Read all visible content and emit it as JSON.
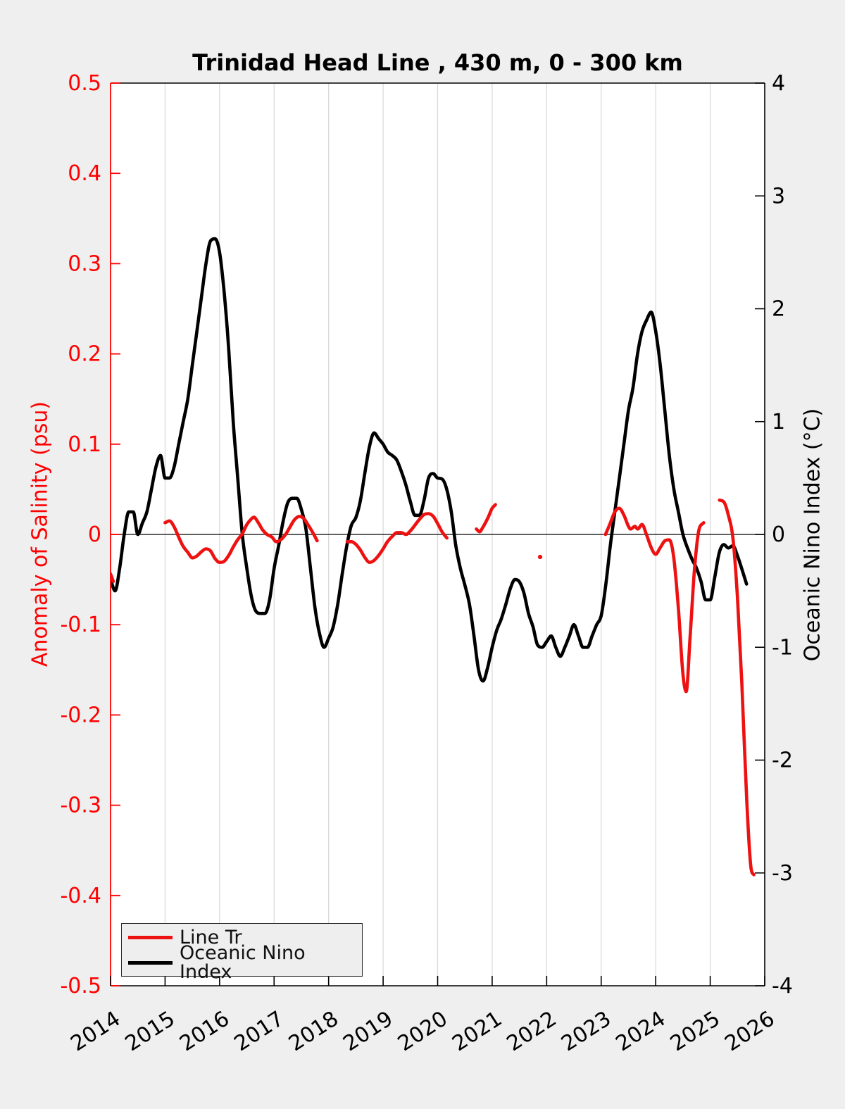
{
  "chart_data": {
    "type": "line",
    "title": "Trinidad Head Line , 430 m, 0 - 300 km",
    "x_axis": {
      "tick_labels": [
        2014,
        2015,
        2016,
        2017,
        2018,
        2019,
        2020,
        2021,
        2022,
        2023,
        2024,
        2025,
        2026
      ],
      "min": 2014,
      "max": 2026,
      "grid": "vertical"
    },
    "left_axis": {
      "label": "Anomaly of Salinity (psu)",
      "color": "#ff0000",
      "min": -0.5,
      "max": 0.5,
      "tick_step": 0.1
    },
    "right_axis": {
      "label": "Oceanic Nino Index (°C)",
      "color": "#000000",
      "min": -4,
      "max": 4,
      "tick_step": 1
    },
    "zero_line": true,
    "legend": [
      {
        "label": "Line Tr",
        "color": "#ee1111"
      },
      {
        "label": "Oceanic Nino Index",
        "color": "#000000"
      }
    ],
    "series": [
      {
        "name": "Oceanic Nino Index",
        "axis": "right",
        "color": "#000000",
        "x_start": 2013.9167,
        "x_step": 0.0833333,
        "values": [
          -0.3,
          -0.4,
          -0.5,
          -0.3,
          0.0,
          0.2,
          0.2,
          0.0,
          0.1,
          0.2,
          0.4,
          0.6,
          0.7,
          0.5,
          0.5,
          0.6,
          0.8,
          1.0,
          1.2,
          1.5,
          1.8,
          2.1,
          2.4,
          2.6,
          2.62,
          2.5,
          2.15,
          1.65,
          1.0,
          0.5,
          0.0,
          -0.3,
          -0.55,
          -0.68,
          -0.7,
          -0.7,
          -0.58,
          -0.3,
          -0.1,
          0.12,
          0.28,
          0.32,
          0.32,
          0.22,
          0.05,
          -0.3,
          -0.65,
          -0.88,
          -1.0,
          -0.92,
          -0.82,
          -0.62,
          -0.35,
          -0.1,
          0.08,
          0.15,
          0.3,
          0.55,
          0.78,
          0.9,
          0.85,
          0.8,
          0.73,
          0.7,
          0.66,
          0.56,
          0.44,
          0.29,
          0.17,
          0.17,
          0.3,
          0.5,
          0.54,
          0.5,
          0.49,
          0.4,
          0.2,
          -0.1,
          -0.3,
          -0.45,
          -0.62,
          -0.9,
          -1.2,
          -1.3,
          -1.18,
          -1.0,
          -0.85,
          -0.75,
          -0.62,
          -0.48,
          -0.4,
          -0.42,
          -0.52,
          -0.7,
          -0.82,
          -0.98,
          -1.0,
          -0.95,
          -0.9,
          -1.0,
          -1.08,
          -1.0,
          -0.9,
          -0.8,
          -0.9,
          -1.0,
          -1.0,
          -0.9,
          -0.8,
          -0.72,
          -0.45,
          -0.1,
          0.2,
          0.5,
          0.8,
          1.1,
          1.3,
          1.6,
          1.8,
          1.9,
          1.97,
          1.8,
          1.5,
          1.1,
          0.7,
          0.4,
          0.2,
          0.0,
          -0.12,
          -0.22,
          -0.3,
          -0.42,
          -0.58,
          -0.58,
          -0.38,
          -0.16,
          -0.09,
          -0.12,
          -0.1,
          -0.19,
          -0.31,
          -0.44
        ]
      },
      {
        "name": "Line Tr",
        "axis": "left",
        "color": "#ee1111",
        "segments": [
          [
            [
              2013.95,
              -0.04
            ],
            [
              2014.0,
              -0.044
            ],
            [
              2014.05,
              -0.052
            ]
          ],
          [
            [
              2015.0,
              0.013
            ],
            [
              2015.08,
              0.015
            ],
            [
              2015.17,
              0.008
            ],
            [
              2015.25,
              -0.003
            ],
            [
              2015.33,
              -0.013
            ],
            [
              2015.42,
              -0.02
            ],
            [
              2015.5,
              -0.026
            ],
            [
              2015.58,
              -0.024
            ],
            [
              2015.67,
              -0.019
            ],
            [
              2015.75,
              -0.016
            ],
            [
              2015.83,
              -0.018
            ],
            [
              2015.92,
              -0.027
            ],
            [
              2016.0,
              -0.031
            ],
            [
              2016.08,
              -0.03
            ],
            [
              2016.17,
              -0.023
            ],
            [
              2016.25,
              -0.014
            ],
            [
              2016.33,
              -0.006
            ],
            [
              2016.42,
              0.001
            ],
            [
              2016.5,
              0.011
            ],
            [
              2016.58,
              0.017
            ],
            [
              2016.63,
              0.019
            ],
            [
              2016.71,
              0.013
            ],
            [
              2016.79,
              0.005
            ],
            [
              2016.87,
              0.0
            ],
            [
              2016.96,
              -0.003
            ],
            [
              2017.04,
              -0.008
            ],
            [
              2017.12,
              -0.006
            ],
            [
              2017.21,
              0.0
            ],
            [
              2017.29,
              0.008
            ],
            [
              2017.37,
              0.016
            ],
            [
              2017.46,
              0.02
            ],
            [
              2017.54,
              0.018
            ],
            [
              2017.62,
              0.011
            ],
            [
              2017.71,
              0.002
            ],
            [
              2017.79,
              -0.007
            ]
          ],
          [
            [
              2018.34,
              -0.008
            ],
            [
              2018.42,
              -0.008
            ],
            [
              2018.5,
              -0.011
            ],
            [
              2018.58,
              -0.017
            ],
            [
              2018.67,
              -0.026
            ],
            [
              2018.75,
              -0.031
            ],
            [
              2018.83,
              -0.029
            ],
            [
              2018.92,
              -0.023
            ],
            [
              2019.0,
              -0.016
            ],
            [
              2019.08,
              -0.008
            ],
            [
              2019.17,
              -0.002
            ],
            [
              2019.25,
              0.002
            ],
            [
              2019.33,
              0.002
            ],
            [
              2019.42,
              0.0
            ],
            [
              2019.5,
              0.004
            ],
            [
              2019.58,
              0.01
            ],
            [
              2019.67,
              0.017
            ],
            [
              2019.75,
              0.022
            ],
            [
              2019.83,
              0.023
            ],
            [
              2019.92,
              0.02
            ],
            [
              2020.0,
              0.012
            ],
            [
              2020.08,
              0.003
            ],
            [
              2020.17,
              -0.004
            ]
          ],
          [
            [
              2020.71,
              0.006
            ],
            [
              2020.77,
              0.003
            ],
            [
              2020.83,
              0.008
            ],
            [
              2020.92,
              0.018
            ],
            [
              2021.0,
              0.029
            ],
            [
              2021.06,
              0.033
            ]
          ],
          [
            [
              2023.08,
              0.0
            ],
            [
              2023.17,
              0.013
            ],
            [
              2023.25,
              0.025
            ],
            [
              2023.33,
              0.029
            ],
            [
              2023.42,
              0.021
            ],
            [
              2023.5,
              0.009
            ],
            [
              2023.54,
              0.006
            ],
            [
              2023.62,
              0.009
            ],
            [
              2023.67,
              0.006
            ],
            [
              2023.75,
              0.011
            ],
            [
              2023.83,
              0.0
            ],
            [
              2023.92,
              -0.015
            ],
            [
              2024.0,
              -0.022
            ],
            [
              2024.08,
              -0.015
            ],
            [
              2024.17,
              -0.007
            ],
            [
              2024.25,
              -0.006
            ],
            [
              2024.33,
              -0.025
            ],
            [
              2024.42,
              -0.085
            ],
            [
              2024.5,
              -0.155
            ],
            [
              2024.56,
              -0.174
            ],
            [
              2024.63,
              -0.115
            ],
            [
              2024.71,
              -0.04
            ],
            [
              2024.79,
              0.004
            ],
            [
              2024.88,
              0.013
            ]
          ],
          [
            [
              2025.17,
              0.038
            ],
            [
              2025.25,
              0.036
            ],
            [
              2025.33,
              0.022
            ],
            [
              2025.42,
              -0.006
            ],
            [
              2025.5,
              -0.07
            ],
            [
              2025.58,
              -0.165
            ],
            [
              2025.67,
              -0.295
            ],
            [
              2025.75,
              -0.37
            ],
            [
              2025.8,
              -0.377
            ]
          ]
        ],
        "isolated_points": [
          [
            2021.88,
            -0.025
          ]
        ]
      }
    ]
  },
  "style": {
    "figure_bg": "#efefef",
    "plot_bg": "#ffffff",
    "grid_color": "#d8d8d8",
    "left_spine_color": "#ff0000",
    "spine_color": "#000000",
    "line_width": 4.6
  }
}
